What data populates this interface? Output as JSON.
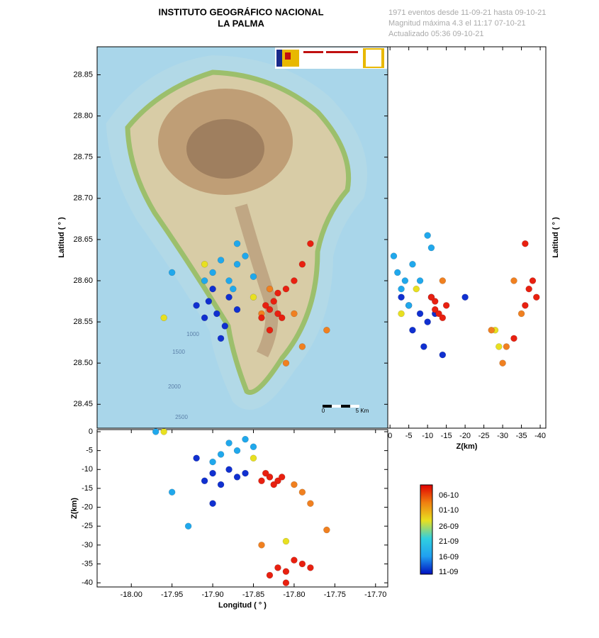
{
  "header": {
    "title": "INSTITUTO GEOGRÁFICO NACIONAL",
    "subtitle": "LA PALMA",
    "info": [
      "1971 eventos desde 11-09-21 hasta 09-10-21",
      "Magnitud máxima 4.3 el 11:17 07-10-21",
      "Actualizado   05:36  09-10-21"
    ]
  },
  "colorbar": {
    "labels": [
      "06-10",
      "01-10",
      "26-09",
      "21-09",
      "16-09",
      "11-09"
    ],
    "colors": [
      "#e00000",
      "#f08010",
      "#e8e020",
      "#30d0e0",
      "#20a0f0",
      "#0010c0"
    ]
  },
  "chart_data": [
    {
      "type": "scatter",
      "ylabel": "Latitud ( ° )",
      "xlim": [
        -18.042,
        -17.685
      ],
      "ylim": [
        28.421,
        28.884
      ],
      "yticks": [
        {
          "value": 28.45,
          "label": "28.45"
        },
        {
          "value": 28.5,
          "label": "28.50"
        },
        28.55,
        {
          "value": 28.6,
          "label": "28.60"
        },
        28.65,
        {
          "value": 28.7,
          "label": "28.70"
        },
        28.75,
        {
          "value": 28.8,
          "label": "28.80"
        },
        28.85
      ],
      "annotations": [
        "1000",
        "1500",
        "2000",
        "2500",
        "0",
        "5 Km"
      ],
      "series": [
        {
          "color": "#1030d0",
          "x": [
            -17.905,
            -17.895,
            -17.91,
            -17.885,
            -17.87,
            -17.9,
            -17.88,
            -17.92,
            -17.89
          ],
          "values": [
            28.575,
            28.56,
            28.555,
            28.545,
            28.565,
            28.59,
            28.58,
            28.57,
            28.53
          ]
        },
        {
          "color": "#20a8ec",
          "x": [
            -17.88,
            -17.87,
            -17.9,
            -17.86,
            -17.89,
            -17.85,
            -17.875,
            -17.91,
            -17.87,
            -17.95
          ],
          "values": [
            28.6,
            28.62,
            28.61,
            28.63,
            28.625,
            28.605,
            28.59,
            28.6,
            28.645,
            28.61
          ]
        },
        {
          "color": "#e8e020",
          "x": [
            -17.96,
            -17.85,
            -17.91
          ],
          "values": [
            28.555,
            28.58,
            28.62
          ]
        },
        {
          "color": "#f08020",
          "x": [
            -17.8,
            -17.81,
            -17.76,
            -17.83,
            -17.79,
            -17.84
          ],
          "values": [
            28.56,
            28.5,
            28.54,
            28.59,
            28.52,
            28.56
          ]
        },
        {
          "color": "#e82010",
          "x": [
            -17.83,
            -17.82,
            -17.835,
            -17.825,
            -17.815,
            -17.84,
            -17.81,
            -17.8,
            -17.79,
            -17.78,
            -17.83,
            -17.82
          ],
          "values": [
            28.565,
            28.56,
            28.57,
            28.575,
            28.555,
            28.555,
            28.59,
            28.6,
            28.62,
            28.645,
            28.54,
            28.585
          ]
        }
      ]
    },
    {
      "type": "scatter",
      "xlabel": "Z(km)",
      "ylabel": "Latitud ( ° )",
      "xlim": [
        0.6,
        -41.5
      ],
      "ylim": [
        28.421,
        28.884
      ],
      "xticks": [
        0,
        -5,
        -10,
        -15,
        -20,
        -25,
        -30,
        -35,
        -40
      ],
      "series": [
        {
          "color": "#1030d0",
          "x": [
            -5,
            -8,
            -10,
            -12,
            -3,
            -6,
            -11,
            -9,
            -14,
            -20
          ],
          "values": [
            28.57,
            28.56,
            28.55,
            28.56,
            28.58,
            28.54,
            28.58,
            28.52,
            28.51,
            28.58
          ]
        },
        {
          "color": "#20a8ec",
          "x": [
            -2,
            -4,
            -1,
            -6,
            -3,
            -8,
            -10,
            -5,
            -11
          ],
          "values": [
            28.61,
            28.6,
            28.63,
            28.62,
            28.59,
            28.6,
            28.655,
            28.57,
            28.64
          ]
        },
        {
          "color": "#e8e020",
          "x": [
            -7,
            -28,
            -29,
            -3
          ],
          "values": [
            28.59,
            28.54,
            28.52,
            28.56
          ]
        },
        {
          "color": "#f08020",
          "x": [
            -14,
            -27,
            -30,
            -33,
            -35,
            -31
          ],
          "values": [
            28.6,
            28.54,
            28.5,
            28.6,
            28.56,
            28.52
          ]
        },
        {
          "color": "#e82010",
          "x": [
            -12,
            -13,
            -14,
            -15,
            -12,
            -11,
            -36,
            -37,
            -38,
            -39,
            -36,
            -33
          ],
          "values": [
            28.565,
            28.56,
            28.555,
            28.57,
            28.575,
            28.58,
            28.57,
            28.59,
            28.6,
            28.58,
            28.645,
            28.53
          ]
        }
      ]
    },
    {
      "type": "scatter",
      "xlabel": "Longitud ( ° )",
      "ylabel": "Z(km)",
      "xlim": [
        -18.042,
        -17.685
      ],
      "ylim": [
        -41.1,
        0.56
      ],
      "xticks": [
        {
          "value": -18.0,
          "label": "-18.00"
        },
        -17.95,
        {
          "value": -17.9,
          "label": "-17.90"
        },
        -17.85,
        {
          "value": -17.8,
          "label": "-17.80"
        },
        -17.75,
        {
          "value": -17.7,
          "label": "-17.70"
        }
      ],
      "yticks": [
        0,
        -5,
        -10,
        -15,
        -20,
        -25,
        -30,
        -35,
        -40
      ],
      "series": [
        {
          "color": "#1030d0",
          "x": [
            -17.9,
            -17.88,
            -17.91,
            -17.87,
            -17.92,
            -17.89,
            -17.9,
            -17.86
          ],
          "values": [
            -11,
            -10,
            -13,
            -12,
            -7,
            -14,
            -19,
            -11
          ]
        },
        {
          "color": "#20a8ec",
          "x": [
            -17.88,
            -17.87,
            -17.86,
            -17.89,
            -17.85,
            -17.9,
            -17.93,
            -17.95,
            -17.97
          ],
          "values": [
            -3,
            -5,
            -2,
            -6,
            -4,
            -8,
            -25,
            -16,
            0
          ]
        },
        {
          "color": "#e8e020",
          "x": [
            -17.96,
            -17.85,
            -17.81
          ],
          "values": [
            0,
            -7,
            -29
          ]
        },
        {
          "color": "#f08020",
          "x": [
            -17.8,
            -17.76,
            -17.79,
            -17.83,
            -17.84,
            -17.78
          ],
          "values": [
            -14,
            -26,
            -16,
            -12,
            -30,
            -19
          ]
        },
        {
          "color": "#e82010",
          "x": [
            -17.83,
            -17.82,
            -17.835,
            -17.825,
            -17.815,
            -17.84,
            -17.82,
            -17.81,
            -17.8,
            -17.79,
            -17.83,
            -17.78,
            -17.81
          ],
          "values": [
            -12,
            -13,
            -11,
            -14,
            -12,
            -13,
            -36,
            -37,
            -34,
            -35,
            -38,
            -36,
            -40
          ]
        }
      ]
    }
  ]
}
